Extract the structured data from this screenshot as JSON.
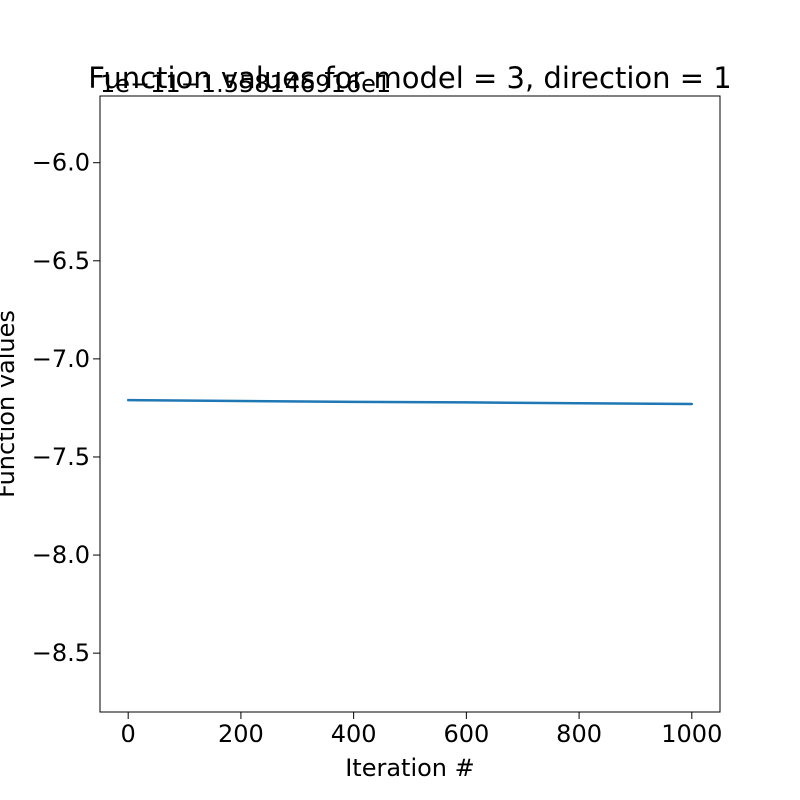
{
  "chart_data": {
    "type": "line",
    "title": "Function values for model = 3, direction = 1",
    "offset_label": "1e−11−1.558146916e1",
    "xlabel": "Iteration #",
    "ylabel": "Function values",
    "xlim": [
      -50,
      1050
    ],
    "ylim": [
      -8.8,
      -5.66
    ],
    "x_ticks": [
      0,
      200,
      400,
      600,
      800,
      1000
    ],
    "x_tick_labels": [
      "0",
      "200",
      "400",
      "600",
      "800",
      "1000"
    ],
    "y_ticks": [
      -6.0,
      -6.5,
      -7.0,
      -7.5,
      -8.0,
      -8.5
    ],
    "y_tick_labels": [
      "−6.0",
      "−6.5",
      "−7.0",
      "−7.5",
      "−8.0",
      "−8.5"
    ],
    "grid": false,
    "series": [
      {
        "color": "#1f77b4",
        "x": [
          0,
          200,
          400,
          600,
          800,
          1000
        ],
        "y": [
          -7.21,
          -7.215,
          -7.219,
          -7.222,
          -7.226,
          -7.23
        ]
      }
    ]
  }
}
